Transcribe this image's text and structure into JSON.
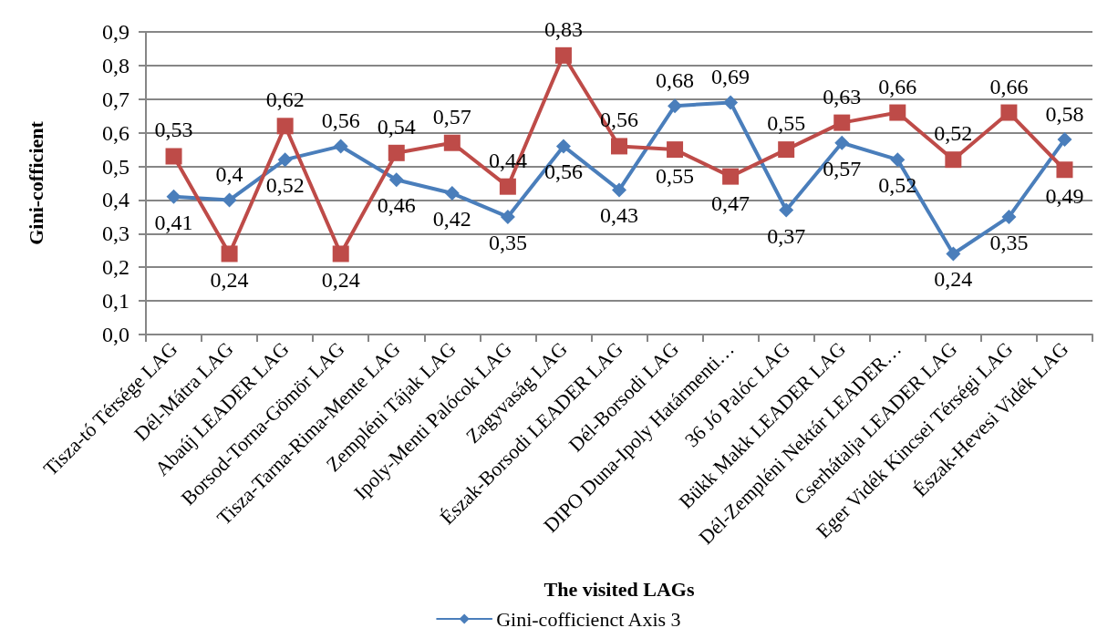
{
  "chart_data": {
    "type": "line",
    "xlabel": "The visited LAGs",
    "ylabel": "Gini-cofficient",
    "categories": [
      "Tisza-tó Térsége LAG",
      "Dél-Mátra LAG",
      "Abaúj LEADER LAG",
      "Borsod-Torna-Gömör LAG",
      "Tisza-Tarna-Rima-Mente LAG",
      "Zempléni Tájak LAG",
      "Ipoly-Menti Palócok LAG",
      "Zagyvaság LAG",
      "Észak-Borsodi LEADER LAG",
      "Dél-Borsodi LAG",
      "DIPO Duna-Ipoly Határmenti…",
      "36 Jó Palóc LAG",
      "Bükk Makk LEADER LAG",
      "Dél-Zempléni Nektár LEADER…",
      "Cserhátalja LEADER LAG",
      "Eger Vidék Kincsei Térségi LAG",
      "Észak-Hevesi Vidék LAG"
    ],
    "series": [
      {
        "name": "Gini-cofficienct Axis 3",
        "color": "#4a7ebb",
        "marker": "diamond",
        "values": [
          0.41,
          0.4,
          0.52,
          0.56,
          0.46,
          0.42,
          0.35,
          0.56,
          0.43,
          0.68,
          0.69,
          0.37,
          0.57,
          0.52,
          0.24,
          0.35,
          0.58
        ],
        "value_labels": [
          "0,41",
          "0,4",
          "0,52",
          "0,56",
          "0,46",
          "0,42",
          "0,35",
          "0,56",
          "0,43",
          "0,68",
          "0,69",
          "0,37",
          "0,57",
          "0,52",
          "0,24",
          "0,35",
          "0,58"
        ]
      },
      {
        "color": "#be4b48",
        "marker": "square",
        "values": [
          0.53,
          0.24,
          0.62,
          0.24,
          0.54,
          0.57,
          0.44,
          0.83,
          0.56,
          0.55,
          0.47,
          0.55,
          0.63,
          0.66,
          0.52,
          0.66,
          0.49
        ],
        "value_labels": [
          "0,53",
          "0,24",
          "0,62",
          "0,24",
          "0,54",
          "0,57",
          "0,44",
          "0,83",
          "0,56",
          "0,55",
          "0,47",
          "0,55",
          "0,63",
          "0,66",
          "0,52",
          "0,66",
          "0,49"
        ]
      }
    ],
    "ylim": [
      0,
      0.9
    ],
    "yticks": [
      {
        "value": 0,
        "label": "0,0"
      },
      {
        "value": 0.1,
        "label": "0,1"
      },
      {
        "value": 0.2,
        "label": "0,2"
      },
      {
        "value": 0.3,
        "label": "0,3"
      },
      {
        "value": 0.4,
        "label": "0,4"
      },
      {
        "value": 0.5,
        "label": "0,5"
      },
      {
        "value": 0.6,
        "label": "0,6"
      },
      {
        "value": 0.7,
        "label": "0,7"
      },
      {
        "value": 0.8,
        "label": "0,8"
      },
      {
        "value": 0.9,
        "label": "0,9"
      }
    ],
    "grid": "y",
    "legend": "bottom",
    "line_style": "solid"
  }
}
